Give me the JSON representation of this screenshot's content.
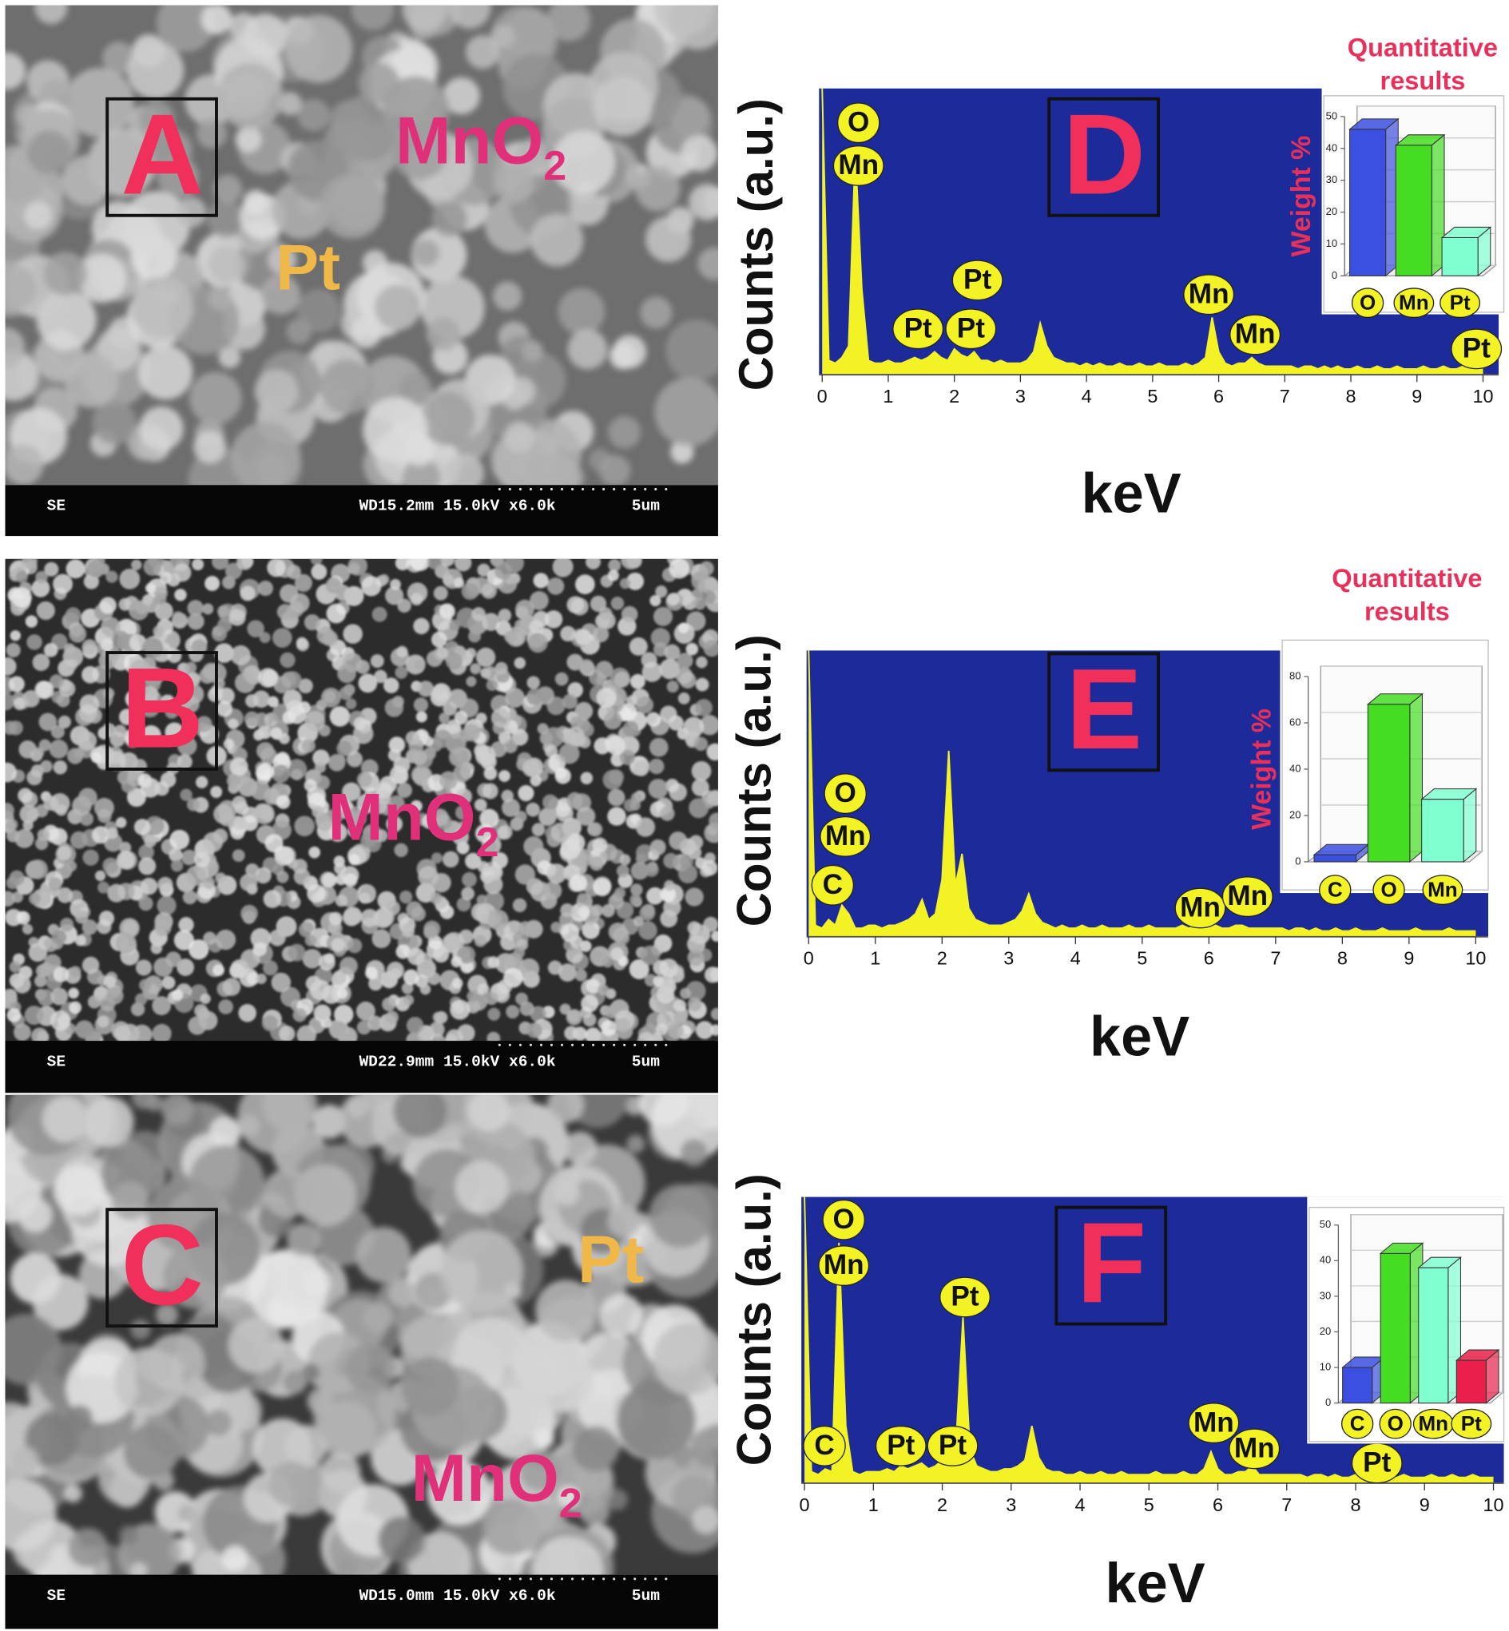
{
  "sem_panels": [
    {
      "letter": "A",
      "labels": [
        {
          "text": "MnO",
          "sub": "2"
        },
        {
          "text": "Pt"
        }
      ],
      "info": [
        "SE",
        "WD15.2mm 15.0kV x6.0k",
        "5um"
      ]
    },
    {
      "letter": "B",
      "labels": [
        {
          "text": "MnO",
          "sub": "2"
        }
      ],
      "info": [
        "SE",
        "WD22.9mm 15.0kV x6.0k",
        "5um"
      ]
    },
    {
      "letter": "C",
      "labels": [
        {
          "text": "Pt"
        },
        {
          "text": "MnO",
          "sub": "2"
        }
      ],
      "info": [
        "SE",
        "WD15.0mm 15.0kV x6.0k",
        "5um"
      ]
    }
  ],
  "chart_data": [
    {
      "type": "line",
      "panel": "D",
      "ylabel": "Counts (a.u.)",
      "xlabel": "keV",
      "color": "#f2f224",
      "xlim": [
        0,
        10
      ],
      "xticks": [
        0,
        1,
        2,
        3,
        4,
        5,
        6,
        7,
        8,
        9,
        10
      ],
      "ylim": [
        0,
        100
      ],
      "x": [
        0.0,
        0.1,
        0.2,
        0.3,
        0.4,
        0.5,
        0.6,
        0.7,
        0.8,
        0.9,
        1.0,
        1.1,
        1.2,
        1.3,
        1.4,
        1.5,
        1.6,
        1.7,
        1.8,
        1.9,
        2.0,
        2.1,
        2.2,
        2.3,
        2.4,
        2.5,
        2.6,
        2.7,
        2.8,
        2.9,
        3.0,
        3.1,
        3.2,
        3.3,
        3.4,
        3.5,
        3.6,
        3.7,
        3.8,
        3.9,
        4.0,
        4.1,
        4.2,
        4.3,
        4.4,
        4.5,
        4.6,
        4.7,
        4.8,
        4.9,
        5.0,
        5.1,
        5.2,
        5.3,
        5.4,
        5.5,
        5.6,
        5.7,
        5.8,
        5.9,
        6.0,
        6.1,
        6.2,
        6.3,
        6.4,
        6.5,
        6.6,
        6.7,
        6.8,
        6.9,
        7.0,
        7.1,
        7.2,
        7.3,
        7.4,
        7.5,
        7.6,
        7.7,
        7.8,
        7.9,
        8.0,
        8.1,
        8.2,
        8.3,
        8.4,
        8.5,
        8.6,
        8.7,
        8.8,
        8.9,
        9.0,
        9.1,
        9.2,
        9.3,
        9.4,
        9.5,
        9.6,
        9.7,
        9.8,
        9.9,
        10.0
      ],
      "values": [
        100,
        5,
        4,
        6,
        10,
        78,
        30,
        5,
        4,
        4,
        5,
        4,
        4,
        5,
        6,
        5,
        6,
        8,
        6,
        5,
        9,
        7,
        6,
        8,
        5,
        5,
        4,
        5,
        4,
        4,
        4,
        5,
        8,
        18,
        10,
        6,
        5,
        4,
        4,
        3,
        4,
        3,
        4,
        3,
        3,
        4,
        3,
        3,
        4,
        3,
        3,
        4,
        3,
        3,
        3,
        4,
        3,
        4,
        6,
        20,
        8,
        4,
        3,
        4,
        4,
        6,
        4,
        3,
        3,
        3,
        3,
        3,
        2,
        3,
        3,
        2,
        3,
        2,
        3,
        2,
        2,
        3,
        2,
        2,
        3,
        2,
        2,
        3,
        2,
        2,
        2,
        3,
        2,
        2,
        3,
        2,
        2,
        3,
        2,
        2,
        2
      ],
      "annotations": [
        {
          "text": "O",
          "x": 0.55,
          "y": 88
        },
        {
          "text": "Mn",
          "x": 0.55,
          "y": 73
        },
        {
          "text": "Pt",
          "x": 2.35,
          "y": 33
        },
        {
          "text": "Pt",
          "x": 1.45,
          "y": 16
        },
        {
          "text": "Pt",
          "x": 2.25,
          "y": 16
        },
        {
          "text": "Mn",
          "x": 5.85,
          "y": 28
        },
        {
          "text": "Mn",
          "x": 6.55,
          "y": 14
        },
        {
          "text": "Pt",
          "x": 9.9,
          "y": 9
        }
      ]
    },
    {
      "type": "bar",
      "title": "Quantitative results",
      "ylabel": "Weight %",
      "categories": [
        "O",
        "Mn",
        "Pt"
      ],
      "values": [
        46,
        41,
        12
      ],
      "colors": [
        "#3b4fe0",
        "#44dd22",
        "#80ffd0"
      ],
      "ylim": [
        0,
        50
      ],
      "yticks": [
        0,
        10,
        20,
        30,
        40,
        50
      ]
    },
    {
      "type": "line",
      "panel": "E",
      "ylabel": "Counts (a.u.)",
      "xlabel": "keV",
      "color": "#f2f224",
      "xlim": [
        0,
        10
      ],
      "xticks": [
        0,
        1,
        2,
        3,
        4,
        5,
        6,
        7,
        8,
        9,
        10
      ],
      "ylim": [
        0,
        100
      ],
      "x": [
        0.0,
        0.1,
        0.2,
        0.3,
        0.4,
        0.5,
        0.6,
        0.7,
        0.8,
        0.9,
        1.0,
        1.1,
        1.2,
        1.3,
        1.4,
        1.5,
        1.6,
        1.7,
        1.8,
        1.9,
        2.0,
        2.1,
        2.2,
        2.3,
        2.4,
        2.5,
        2.6,
        2.7,
        2.8,
        2.9,
        3.0,
        3.1,
        3.2,
        3.3,
        3.4,
        3.5,
        3.6,
        3.7,
        3.8,
        3.9,
        4.0,
        4.1,
        4.2,
        4.3,
        4.4,
        4.5,
        4.6,
        4.7,
        4.8,
        4.9,
        5.0,
        5.1,
        5.2,
        5.3,
        5.4,
        5.5,
        5.6,
        5.7,
        5.8,
        5.9,
        6.0,
        6.1,
        6.2,
        6.3,
        6.4,
        6.5,
        6.6,
        6.7,
        6.8,
        6.9,
        7.0,
        7.1,
        7.2,
        7.3,
        7.4,
        7.5,
        7.6,
        7.7,
        7.8,
        7.9,
        8.0,
        8.1,
        8.2,
        8.3,
        8.4,
        8.5,
        8.6,
        8.7,
        8.8,
        8.9,
        9.0,
        9.1,
        9.2,
        9.3,
        9.4,
        9.5,
        9.6,
        9.7,
        9.8,
        9.9,
        10.0
      ],
      "values": [
        100,
        4,
        3,
        6,
        4,
        11,
        8,
        3,
        3,
        4,
        4,
        3,
        4,
        4,
        5,
        6,
        8,
        13,
        6,
        8,
        20,
        65,
        18,
        29,
        10,
        6,
        5,
        4,
        4,
        4,
        5,
        6,
        9,
        15,
        8,
        5,
        4,
        3,
        4,
        3,
        3,
        4,
        3,
        3,
        4,
        3,
        3,
        3,
        4,
        3,
        3,
        4,
        3,
        3,
        3,
        3,
        4,
        3,
        4,
        4,
        3,
        4,
        3,
        3,
        4,
        4,
        3,
        3,
        3,
        3,
        3,
        3,
        2,
        3,
        3,
        2,
        3,
        2,
        2,
        3,
        2,
        2,
        3,
        2,
        2,
        2,
        3,
        2,
        2,
        2,
        2,
        3,
        2,
        2,
        2,
        2,
        3,
        2,
        2,
        2,
        2
      ],
      "annotations": [
        {
          "text": "O",
          "x": 0.55,
          "y": 50
        },
        {
          "text": "Mn",
          "x": 0.55,
          "y": 35
        },
        {
          "text": "C",
          "x": 0.36,
          "y": 18
        },
        {
          "text": "Mn",
          "x": 5.87,
          "y": 10
        },
        {
          "text": "Mn",
          "x": 6.58,
          "y": 14
        }
      ]
    },
    {
      "type": "bar",
      "title": "Quantitative results",
      "ylabel": "Weight %",
      "categories": [
        "C",
        "O",
        "Mn"
      ],
      "values": [
        3,
        68,
        27
      ],
      "colors": [
        "#3b4fe0",
        "#44dd22",
        "#80ffd0"
      ],
      "ylim": [
        0,
        80
      ],
      "yticks": [
        0,
        20,
        40,
        60,
        80
      ]
    },
    {
      "type": "line",
      "panel": "F",
      "ylabel": "Counts (a.u.)",
      "xlabel": "keV",
      "color": "#f2f224",
      "xlim": [
        0,
        10
      ],
      "xticks": [
        0,
        1,
        2,
        3,
        4,
        5,
        6,
        7,
        8,
        9,
        10
      ],
      "ylim": [
        0,
        100
      ],
      "x": [
        0.0,
        0.1,
        0.2,
        0.3,
        0.4,
        0.5,
        0.6,
        0.7,
        0.8,
        0.9,
        1.0,
        1.1,
        1.2,
        1.3,
        1.4,
        1.5,
        1.6,
        1.7,
        1.8,
        1.9,
        2.0,
        2.1,
        2.2,
        2.3,
        2.4,
        2.5,
        2.6,
        2.7,
        2.8,
        2.9,
        3.0,
        3.1,
        3.2,
        3.3,
        3.4,
        3.5,
        3.6,
        3.7,
        3.8,
        3.9,
        4.0,
        4.1,
        4.2,
        4.3,
        4.4,
        4.5,
        4.6,
        4.7,
        4.8,
        4.9,
        5.0,
        5.1,
        5.2,
        5.3,
        5.4,
        5.5,
        5.6,
        5.7,
        5.8,
        5.9,
        6.0,
        6.1,
        6.2,
        6.3,
        6.4,
        6.5,
        6.6,
        6.7,
        6.8,
        6.9,
        7.0,
        7.1,
        7.2,
        7.3,
        7.4,
        7.5,
        7.6,
        7.7,
        7.8,
        7.9,
        8.0,
        8.1,
        8.2,
        8.3,
        8.4,
        8.5,
        8.6,
        8.7,
        8.8,
        8.9,
        9.0,
        9.1,
        9.2,
        9.3,
        9.4,
        9.5,
        9.6,
        9.7,
        9.8,
        9.9,
        10.0
      ],
      "values": [
        100,
        4,
        3,
        5,
        4,
        84,
        20,
        4,
        3,
        4,
        4,
        4,
        5,
        4,
        6,
        5,
        6,
        7,
        5,
        6,
        8,
        9,
        14,
        58,
        12,
        6,
        5,
        4,
        4,
        5,
        5,
        6,
        8,
        20,
        9,
        5,
        4,
        4,
        3,
        3,
        4,
        3,
        3,
        4,
        3,
        3,
        4,
        3,
        3,
        3,
        3,
        4,
        3,
        3,
        3,
        4,
        3,
        3,
        5,
        11,
        5,
        3,
        3,
        4,
        4,
        6,
        3,
        3,
        3,
        3,
        3,
        3,
        3,
        2,
        3,
        3,
        2,
        3,
        2,
        2,
        3,
        2,
        2,
        4,
        3,
        2,
        2,
        3,
        2,
        2,
        2,
        3,
        2,
        2,
        3,
        2,
        2,
        3,
        2,
        2,
        2
      ],
      "annotations": [
        {
          "text": "O",
          "x": 0.57,
          "y": 92
        },
        {
          "text": "Mn",
          "x": 0.57,
          "y": 76
        },
        {
          "text": "Pt",
          "x": 2.33,
          "y": 65
        },
        {
          "text": "C",
          "x": 0.29,
          "y": 13
        },
        {
          "text": "Pt",
          "x": 1.4,
          "y": 13
        },
        {
          "text": "Pt",
          "x": 2.15,
          "y": 13
        },
        {
          "text": "Mn",
          "x": 5.94,
          "y": 21
        },
        {
          "text": "Mn",
          "x": 6.53,
          "y": 12
        },
        {
          "text": "Pt",
          "x": 8.31,
          "y": 7
        }
      ]
    },
    {
      "type": "bar",
      "categories": [
        "C",
        "O",
        "Mn",
        "Pt"
      ],
      "values": [
        10,
        42,
        38,
        12
      ],
      "colors": [
        "#3b4fe0",
        "#44dd22",
        "#80ffd0",
        "#e8204a"
      ],
      "ylim": [
        0,
        50
      ],
      "yticks": [
        0,
        10,
        20,
        30,
        40,
        50
      ]
    }
  ]
}
